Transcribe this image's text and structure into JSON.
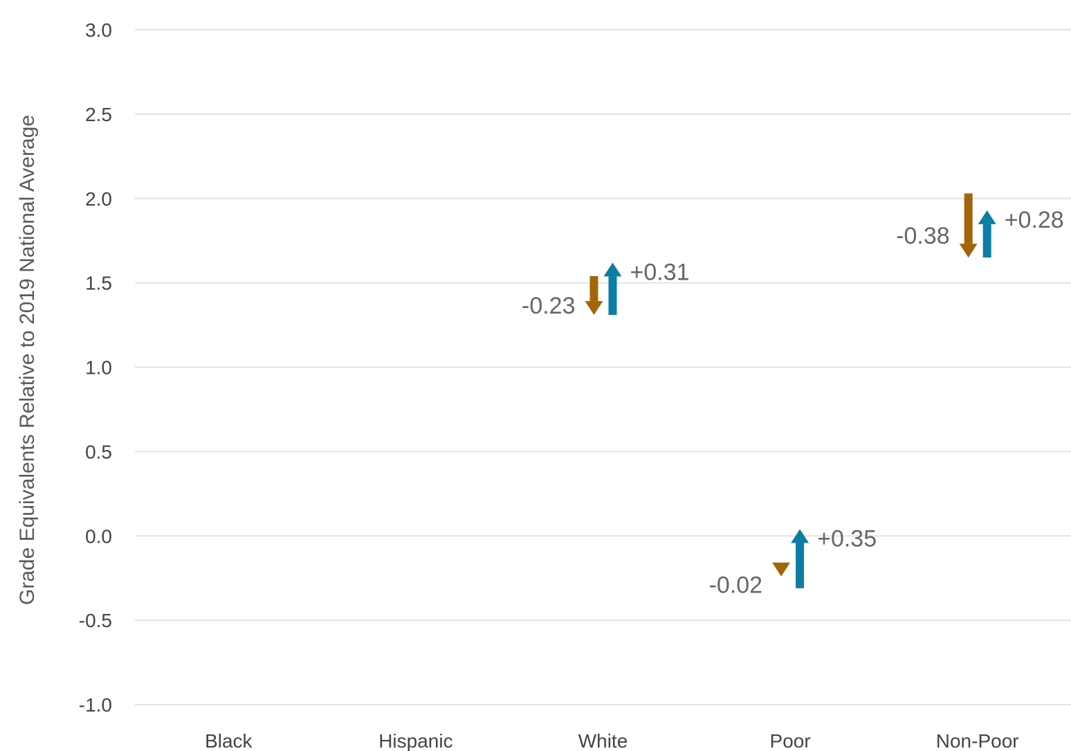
{
  "chart_data": {
    "type": "bar",
    "xlabel": "",
    "ylabel": "Grade Equivalents Relative to 2019 National Average",
    "ylim": [
      -1.0,
      3.0
    ],
    "yticks": [
      "3.0",
      "2.5",
      "2.0",
      "1.5",
      "1.0",
      "0.5",
      "0.0",
      "-0.5",
      "-1.0"
    ],
    "ytick_values": [
      3.0,
      2.5,
      2.0,
      1.5,
      1.0,
      0.5,
      0.0,
      -0.5,
      -1.0
    ],
    "grid": true,
    "categories": [
      "Black",
      "Hispanic",
      "White",
      "Poor",
      "Non-Poor"
    ],
    "series": [
      {
        "color": "#a3650a",
        "direction": "down",
        "changes": [
          null,
          null,
          {
            "from": 1.54,
            "to": 1.31,
            "label": "-0.23"
          },
          {
            "from": -0.22,
            "to": -0.24,
            "label": "-0.02"
          },
          {
            "from": 2.03,
            "to": 1.65,
            "label": "-0.38"
          }
        ]
      },
      {
        "color": "#0b7ea4",
        "direction": "up",
        "changes": [
          null,
          null,
          {
            "from": 1.31,
            "to": 1.62,
            "label": "+0.31"
          },
          {
            "from": -0.31,
            "to": 0.04,
            "label": "+0.35"
          },
          {
            "from": 1.65,
            "to": 1.93,
            "label": "+0.28"
          }
        ]
      }
    ]
  }
}
